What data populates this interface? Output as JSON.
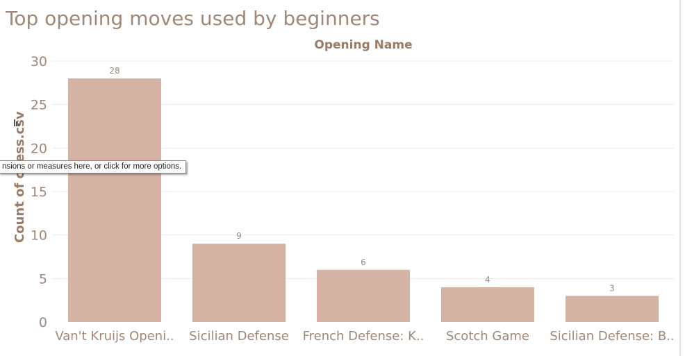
{
  "title": "Top opening moves used by beginners",
  "tooltip": "nsions or measures here, or click for more options.",
  "colors": {
    "bar": "#d4b2a4",
    "axis_text": "#a08878",
    "grid": "#ececec",
    "label": "#9a7c68"
  },
  "chart_data": {
    "type": "bar",
    "title": "Top opening moves used by beginners",
    "xlabel": "Opening Name",
    "ylabel": "Count of chess.csv",
    "categories": [
      "Van't Kruijs Openi..",
      "Sicilian Defense",
      "French Defense: K..",
      "Scotch Game",
      "Sicilian Defense: B.."
    ],
    "values": [
      28,
      9,
      6,
      4,
      3
    ],
    "data_labels": [
      "28",
      "9",
      "6",
      "4",
      "3"
    ],
    "ylim": [
      0,
      30
    ],
    "yticks": [
      0,
      5,
      10,
      15,
      20,
      25,
      30
    ],
    "grid": true
  }
}
